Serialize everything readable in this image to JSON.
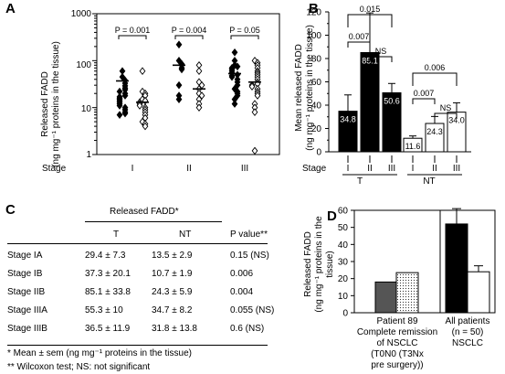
{
  "panelA": {
    "letter": "A",
    "ylabel": [
      "Released FADD",
      "(ng mg⁻¹ proteins in the tissue)"
    ],
    "xaxis_prefix": "Stage",
    "yticks": [
      "1000",
      "100",
      "10",
      "1"
    ],
    "pvalues": [
      "P = 0.001",
      "P = 0.004",
      "P = 0.05"
    ]
  },
  "panelB": {
    "letter": "B",
    "ylabel": [
      "Mean released FADD",
      "(ng mg⁻¹ proteins in the tissue)"
    ],
    "xaxis_prefix": "Stage",
    "yticks": [
      "0",
      "20",
      "40",
      "60",
      "80",
      "100",
      "120"
    ],
    "groups": [
      "T",
      "NT"
    ],
    "sig": [
      "0.015",
      "0.007",
      "NS",
      "0.006",
      "0.007",
      "NS"
    ]
  },
  "panelC": {
    "letter": "C",
    "header": "Released FADD*",
    "columns": [
      "T",
      "NT",
      "P value**"
    ],
    "rows": [
      {
        "label": "Stage IA",
        "t": "29.4 ± 7.3",
        "nt": "13.5 ± 2.9",
        "p": "0.15 (NS)"
      },
      {
        "label": "Stage IB",
        "t": "37.3 ± 20.1",
        "nt": "10.7 ± 1.9",
        "p": "0.006"
      },
      {
        "label": "Stage IIB",
        "t": "85.1 ± 33.8",
        "nt": "24.3 ± 5.9",
        "p": "0.004"
      },
      {
        "label": "Stage IIIA",
        "t": "55.3 ± 10",
        "nt": "34.7 ± 8.2",
        "p": "0.055 (NS)"
      },
      {
        "label": "Stage IIIB",
        "t": "36.5 ± 11.9",
        "nt": "31.8 ± 13.8",
        "p": "0.6 (NS)"
      }
    ],
    "footnote1": "* Mean ± sem (ng mg⁻¹ proteins in the tissue)",
    "footnote2": "** Wilcoxon test; NS: not significant"
  },
  "panelD": {
    "letter": "D",
    "ylabel": [
      "Released FADD",
      "(ng mg⁻¹ proteins in the",
      "tissue)"
    ],
    "yticks": [
      "0",
      "10",
      "20",
      "30",
      "40",
      "50",
      "60"
    ],
    "left_label": [
      "Patient 89",
      "Complete remission",
      "of NSCLC",
      "(T0N0 (T3Nx",
      "pre surgery))"
    ],
    "right_label": [
      "All patients",
      "(n = 50)",
      "NSCLC"
    ]
  },
  "chart_data": [
    {
      "type": "scatter",
      "panel": "A",
      "xlabel": "Stage",
      "ylabel": "Released FADD (ng mg⁻¹ proteins in the tissue)",
      "yscale": "log",
      "ylim": [
        1,
        1000
      ],
      "categories": [
        "I",
        "II",
        "III"
      ],
      "series": [
        {
          "name": "T",
          "marker": "filled-diamond",
          "color": "#000000",
          "values": [
            [
              60,
              45,
              38,
              33,
              29,
              26,
              24,
              22,
              20,
              18,
              17,
              16,
              15,
              14,
              13,
              12,
              11,
              10,
              9,
              8,
              7.5,
              7
            ],
            [
              220,
              100,
              85,
              80,
              70,
              65,
              30,
              18,
              15
            ],
            [
              150,
              100,
              80,
              75,
              70,
              65,
              60,
              55,
              50,
              48,
              45,
              40,
              35,
              30,
              25,
              22,
              20,
              18,
              15,
              12
            ]
          ]
        },
        {
          "name": "NT",
          "marker": "open-diamond",
          "color": "#000000",
          "values": [
            [
              60,
              22,
              20,
              18,
              15,
              14,
              13,
              12,
              11,
              10,
              9,
              8,
              7,
              6,
              5,
              4.5,
              4
            ],
            [
              80,
              60,
              35,
              30,
              25,
              20,
              18,
              15,
              12,
              10
            ],
            [
              100,
              90,
              80,
              70,
              60,
              55,
              50,
              45,
              40,
              35,
              32,
              30,
              28,
              25,
              22,
              20,
              18,
              12,
              10,
              8,
              1.2
            ]
          ]
        }
      ],
      "medians": {
        "T": [
          37,
          80,
          53
        ],
        "NT": [
          13,
          25,
          35
        ]
      },
      "pvalues": [
        "0.001",
        "0.004",
        "0.05"
      ]
    },
    {
      "type": "bar",
      "panel": "B",
      "xlabel": "Stage",
      "ylabel": "Mean released FADD (ng mg⁻¹ proteins in the tissue)",
      "ylim": [
        0,
        120
      ],
      "categories": [
        "I",
        "II",
        "III",
        "I",
        "II",
        "III"
      ],
      "group_labels": [
        "T",
        "T",
        "T",
        "NT",
        "NT",
        "NT"
      ],
      "values": [
        34.8,
        85.1,
        50.6,
        11.6,
        24.3,
        34.0
      ],
      "value_labels": [
        "34.8",
        "85.1",
        "50.6",
        "11.6",
        "24.3",
        "34.0"
      ],
      "errors": [
        14,
        34,
        8,
        2,
        6,
        8
      ],
      "fills": [
        "#000000",
        "#000000",
        "#000000",
        "#ffffff",
        "#ffffff",
        "#ffffff"
      ],
      "significance": [
        {
          "from": 0,
          "to": 2,
          "label": "0.015"
        },
        {
          "from": 0,
          "to": 1,
          "label": "0.007"
        },
        {
          "from": 1,
          "to": 2,
          "label": "NS"
        },
        {
          "from": 3,
          "to": 5,
          "label": "0.006"
        },
        {
          "from": 3,
          "to": 4,
          "label": "0.007"
        },
        {
          "from": 4,
          "to": 5,
          "label": "NS"
        }
      ]
    },
    {
      "type": "bar",
      "panel": "D",
      "ylabel": "Released FADD (ng mg⁻¹ proteins in the tissue)",
      "ylim": [
        0,
        60
      ],
      "groups": [
        {
          "label": "Patient 89 Complete remission of NSCLC (T0N0 (T3Nx pre surgery))",
          "values": [
            18,
            23.5
          ],
          "errors": [
            0,
            0
          ],
          "fills": [
            "#555555",
            "dotted"
          ]
        },
        {
          "label": "All patients (n = 50) NSCLC",
          "values": [
            52,
            24
          ],
          "errors": [
            9,
            3.5
          ],
          "fills": [
            "#000000",
            "#ffffff"
          ]
        }
      ]
    }
  ]
}
